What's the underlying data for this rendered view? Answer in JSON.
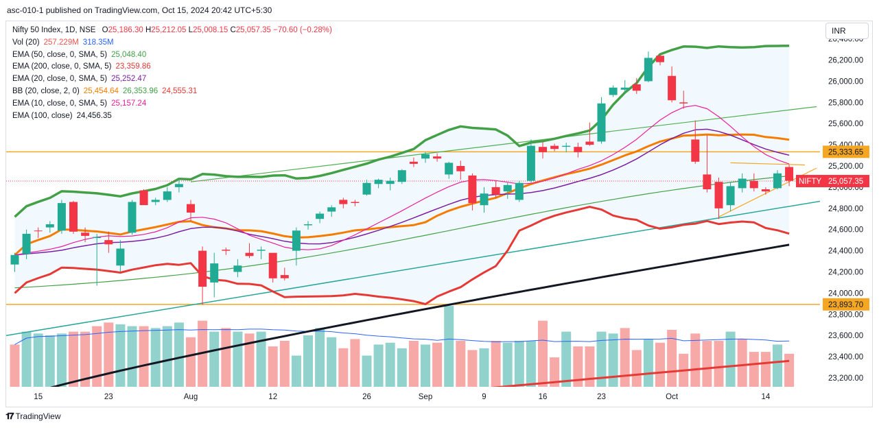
{
  "header": {
    "publish_text": "asc-010-1 published on TradingView.com, Oct 15, 2024 20:42 UTC+5:30"
  },
  "legend": {
    "symbol_line": {
      "name": "Nifty 50 Index, 1D, NSE",
      "ohlc": [
        {
          "label": "O",
          "value": "25,186.30"
        },
        {
          "label": "H",
          "value": "25,212.05"
        },
        {
          "label": "L",
          "value": "25,008.15"
        },
        {
          "label": "C",
          "value": "25,057.35"
        }
      ],
      "change": "−70.60 (−0.28%)"
    },
    "indicators": [
      {
        "name": "Vol (20)",
        "values": [
          {
            "text": "257.229M",
            "color": "#ef5350"
          },
          {
            "text": "318.35M",
            "color": "#2962ff"
          }
        ]
      },
      {
        "name": "EMA (50, close, 0, SMA, 5)",
        "values": [
          {
            "text": "25,048.40",
            "color": "#43a047"
          }
        ]
      },
      {
        "name": "EMA (200, close, 0, SMA, 5)",
        "values": [
          {
            "text": "23,359.86",
            "color": "#e53935"
          }
        ]
      },
      {
        "name": "EMA (20, close, 0, SMA, 5)",
        "values": [
          {
            "text": "25,252.47",
            "color": "#7b1fa2"
          }
        ]
      },
      {
        "name": "BB (20, close, 2, 0)",
        "values": [
          {
            "text": "25,454.64",
            "color": "#f57c00"
          },
          {
            "text": "26,353.96",
            "color": "#43a047"
          },
          {
            "text": "24,555.31",
            "color": "#e53935"
          }
        ]
      },
      {
        "name": "EMA (10, close, 0, SMA, 5)",
        "values": [
          {
            "text": "25,157.24",
            "color": "#e91e9c"
          }
        ]
      },
      {
        "name": "EMA (100, close)",
        "values": [
          {
            "text": "24,456.35",
            "color": "#131722"
          }
        ]
      }
    ]
  },
  "currency": "INR",
  "footer": {
    "logo_text": "TradingView"
  },
  "colors": {
    "up": "#22ab94",
    "down": "#f23645",
    "vol_up": "#92d2cc",
    "vol_down": "#f7a9a7",
    "bb_upper": "#43a047",
    "bb_basis": "#f57c00",
    "bb_lower": "#e53935",
    "ema10": "#e91e9c",
    "ema20": "#7b1fa2",
    "ema50": "#43a047",
    "ema100": "#131722",
    "ema200": "#e53935",
    "vol_ma": "#2962ff",
    "hline": "#f5a623",
    "trend_green": "#4caf50",
    "trend_teal": "#26a69a",
    "triangle": "#f5a623"
  },
  "chart_data": {
    "type": "candlestick",
    "symbol": "NIFTY",
    "timeframe": "1D",
    "ylim": [
      23050,
      26500
    ],
    "y_ticks": [
      23200,
      23400,
      23600,
      23800,
      24000,
      24200,
      24400,
      24600,
      24800,
      25000,
      25200,
      25400,
      25600,
      25800,
      26000,
      26200,
      26400
    ],
    "y_tick_labels": [
      "23,200.00",
      "23,400.00",
      "23,600.00",
      "23,800.00",
      "24,000.00",
      "24,200.00",
      "24,400.00",
      "24,600.00",
      "24,800.00",
      "25,000.00",
      "25,200.00",
      "25,400.00",
      "25,600.00",
      "25,800.00",
      "26,000.00",
      "26,200.00",
      "26,400.00"
    ],
    "x_tick_labels": [
      {
        "label": "15",
        "index": 2
      },
      {
        "label": "23",
        "index": 8
      },
      {
        "label": "Aug",
        "index": 15
      },
      {
        "label": "12",
        "index": 22
      },
      {
        "label": "26",
        "index": 30
      },
      {
        "label": "Sep",
        "index": 35
      },
      {
        "label": "9",
        "index": 40
      },
      {
        "label": "16",
        "index": 45
      },
      {
        "label": "23",
        "index": 50
      },
      {
        "label": "Oct",
        "index": 56
      },
      {
        "label": "14",
        "index": 64
      }
    ],
    "candles": [
      {
        "o": 24270,
        "h": 24380,
        "l": 24200,
        "c": 24360
      },
      {
        "o": 24370,
        "h": 24600,
        "l": 24320,
        "c": 24560
      },
      {
        "o": 24590,
        "h": 24620,
        "l": 24520,
        "c": 24585
      },
      {
        "o": 24620,
        "h": 24680,
        "l": 24570,
        "c": 24650
      },
      {
        "o": 24590,
        "h": 24880,
        "l": 24560,
        "c": 24850
      },
      {
        "o": 24860,
        "h": 24870,
        "l": 24560,
        "c": 24580
      },
      {
        "o": 24570,
        "h": 24620,
        "l": 24480,
        "c": 24540
      },
      {
        "o": 24520,
        "h": 24560,
        "l": 24070,
        "c": 24530
      },
      {
        "o": 24500,
        "h": 24580,
        "l": 24380,
        "c": 24460
      },
      {
        "o": 24260,
        "h": 24500,
        "l": 24200,
        "c": 24420
      },
      {
        "o": 24570,
        "h": 24880,
        "l": 24550,
        "c": 24860
      },
      {
        "o": 24970,
        "h": 24980,
        "l": 24840,
        "c": 24830
      },
      {
        "o": 24860,
        "h": 24900,
        "l": 24830,
        "c": 24880
      },
      {
        "o": 24880,
        "h": 25000,
        "l": 24860,
        "c": 24960
      },
      {
        "o": 25000,
        "h": 25080,
        "l": 24950,
        "c": 25030
      },
      {
        "o": 24840,
        "h": 24880,
        "l": 24680,
        "c": 24760
      },
      {
        "o": 24400,
        "h": 24440,
        "l": 23890,
        "c": 24060
      },
      {
        "o": 24100,
        "h": 24380,
        "l": 23960,
        "c": 24280
      },
      {
        "o": 24410,
        "h": 24430,
        "l": 24360,
        "c": 24400
      },
      {
        "o": 24200,
        "h": 24320,
        "l": 24150,
        "c": 24260
      },
      {
        "o": 24380,
        "h": 24470,
        "l": 24330,
        "c": 24350
      },
      {
        "o": 24400,
        "h": 24440,
        "l": 24320,
        "c": 24410
      },
      {
        "o": 24380,
        "h": 24380,
        "l": 24100,
        "c": 24140
      },
      {
        "o": 24170,
        "h": 24240,
        "l": 24120,
        "c": 24140
      },
      {
        "o": 24400,
        "h": 24620,
        "l": 24260,
        "c": 24590
      },
      {
        "o": 24640,
        "h": 24680,
        "l": 24600,
        "c": 24650
      },
      {
        "o": 24700,
        "h": 24770,
        "l": 24660,
        "c": 24750
      },
      {
        "o": 24770,
        "h": 24830,
        "l": 24720,
        "c": 24810
      },
      {
        "o": 24880,
        "h": 24900,
        "l": 24800,
        "c": 24840
      },
      {
        "o": 24860,
        "h": 24880,
        "l": 24820,
        "c": 24850
      },
      {
        "o": 24930,
        "h": 25070,
        "l": 24920,
        "c": 25040
      },
      {
        "o": 25030,
        "h": 25080,
        "l": 24990,
        "c": 25070
      },
      {
        "o": 25030,
        "h": 25090,
        "l": 24970,
        "c": 25060
      },
      {
        "o": 25050,
        "h": 25170,
        "l": 25030,
        "c": 25160
      },
      {
        "o": 25240,
        "h": 25280,
        "l": 25190,
        "c": 25220
      },
      {
        "o": 25270,
        "h": 25330,
        "l": 25230,
        "c": 25310
      },
      {
        "o": 25290,
        "h": 25320,
        "l": 25240,
        "c": 25270
      },
      {
        "o": 25120,
        "h": 25240,
        "l": 25080,
        "c": 25230
      },
      {
        "o": 25200,
        "h": 25250,
        "l": 25070,
        "c": 25150
      },
      {
        "o": 25110,
        "h": 25130,
        "l": 24780,
        "c": 24850
      },
      {
        "o": 24830,
        "h": 25000,
        "l": 24760,
        "c": 24940
      },
      {
        "o": 25000,
        "h": 25060,
        "l": 24900,
        "c": 24930
      },
      {
        "o": 24960,
        "h": 25040,
        "l": 24890,
        "c": 25020
      },
      {
        "o": 24880,
        "h": 25060,
        "l": 24860,
        "c": 25040
      },
      {
        "o": 25060,
        "h": 25450,
        "l": 25040,
        "c": 25390
      },
      {
        "o": 25380,
        "h": 25430,
        "l": 25270,
        "c": 25330
      },
      {
        "o": 25390,
        "h": 25410,
        "l": 25340,
        "c": 25360
      },
      {
        "o": 25380,
        "h": 25420,
        "l": 25330,
        "c": 25390
      },
      {
        "o": 25380,
        "h": 25420,
        "l": 25280,
        "c": 25330
      },
      {
        "o": 25430,
        "h": 25610,
        "l": 25390,
        "c": 25400
      },
      {
        "o": 25430,
        "h": 25850,
        "l": 25410,
        "c": 25790
      },
      {
        "o": 25870,
        "h": 25960,
        "l": 25850,
        "c": 25940
      },
      {
        "o": 25920,
        "h": 26010,
        "l": 25890,
        "c": 25940
      },
      {
        "o": 25970,
        "h": 26030,
        "l": 25880,
        "c": 25910
      },
      {
        "o": 26000,
        "h": 26280,
        "l": 25990,
        "c": 26220
      },
      {
        "o": 26240,
        "h": 26250,
        "l": 26150,
        "c": 26180
      },
      {
        "o": 26050,
        "h": 26140,
        "l": 25800,
        "c": 25820
      },
      {
        "o": 25800,
        "h": 25910,
        "l": 25740,
        "c": 25790
      },
      {
        "o": 25450,
        "h": 25630,
        "l": 25220,
        "c": 25240
      },
      {
        "o": 25120,
        "h": 25490,
        "l": 24950,
        "c": 24980
      },
      {
        "o": 25050,
        "h": 25090,
        "l": 24700,
        "c": 24800
      },
      {
        "o": 24830,
        "h": 25050,
        "l": 24770,
        "c": 25010
      },
      {
        "o": 24990,
        "h": 25130,
        "l": 24950,
        "c": 25080
      },
      {
        "o": 25060,
        "h": 25130,
        "l": 24960,
        "c": 24990
      },
      {
        "o": 24980,
        "h": 25000,
        "l": 24930,
        "c": 24960
      },
      {
        "o": 24990,
        "h": 25160,
        "l": 24980,
        "c": 25130
      },
      {
        "o": 25190,
        "h": 25210,
        "l": 25010,
        "c": 25060
      }
    ],
    "volume_max": 560,
    "volume": [
      230,
      300,
      290,
      280,
      290,
      300,
      300,
      330,
      350,
      340,
      330,
      330,
      320,
      330,
      350,
      270,
      360,
      300,
      320,
      300,
      290,
      300,
      220,
      250,
      170,
      280,
      320,
      270,
      210,
      260,
      170,
      230,
      240,
      210,
      250,
      230,
      240,
      440,
      250,
      200,
      210,
      250,
      240,
      250,
      250,
      360,
      160,
      300,
      220,
      220,
      300,
      290,
      320,
      200,
      260,
      240,
      310,
      180,
      290,
      250,
      250,
      300,
      260,
      190,
      190,
      230,
      180
    ],
    "volume_up": [
      false,
      true,
      true,
      true,
      true,
      false,
      false,
      false,
      false,
      true,
      true,
      false,
      true,
      true,
      true,
      false,
      false,
      true,
      false,
      true,
      false,
      true,
      false,
      false,
      true,
      true,
      true,
      true,
      false,
      false,
      true,
      true,
      true,
      true,
      false,
      true,
      false,
      true,
      false,
      false,
      true,
      false,
      true,
      true,
      true,
      false,
      false,
      true,
      false,
      false,
      true,
      true,
      false,
      false,
      true,
      false,
      false,
      false,
      false,
      false,
      false,
      true,
      false,
      false,
      false,
      true,
      false
    ],
    "horizontal_levels": [
      {
        "value": 25333.65,
        "label": "25,333.65"
      },
      {
        "value": 23893.7,
        "label": "23,893.70"
      }
    ],
    "last_price_label": {
      "symbol": "NIFTY",
      "value": 25057.35,
      "label": "25,057.35"
    }
  }
}
